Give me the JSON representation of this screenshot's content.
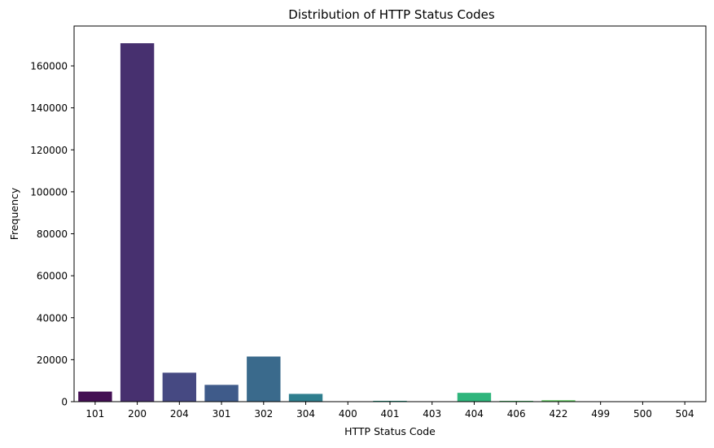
{
  "chart_data": {
    "type": "bar",
    "title": "Distribution of HTTP Status Codes",
    "xlabel": "HTTP Status Code",
    "ylabel": "Frequency",
    "categories": [
      "101",
      "200",
      "204",
      "301",
      "302",
      "304",
      "400",
      "401",
      "403",
      "404",
      "406",
      "422",
      "499",
      "500",
      "504"
    ],
    "values": [
      4800,
      170800,
      13800,
      8000,
      21500,
      3700,
      40,
      400,
      40,
      4200,
      400,
      700,
      40,
      40,
      40
    ],
    "colors": [
      "#440f54",
      "#47306f",
      "#464982",
      "#3f5b8a",
      "#3a6a8c",
      "#2f7e8e",
      "#2a8f8d",
      "#25a08b",
      "#22ad83",
      "#2fb57c",
      "#49c36c",
      "#62c962",
      "#8bd54a",
      "#b0dc37",
      "#d8e21f"
    ],
    "ylim": [
      0,
      179000
    ],
    "yticks": [
      0,
      20000,
      40000,
      60000,
      80000,
      100000,
      120000,
      140000,
      160000
    ],
    "grid": false,
    "legend": false
  }
}
